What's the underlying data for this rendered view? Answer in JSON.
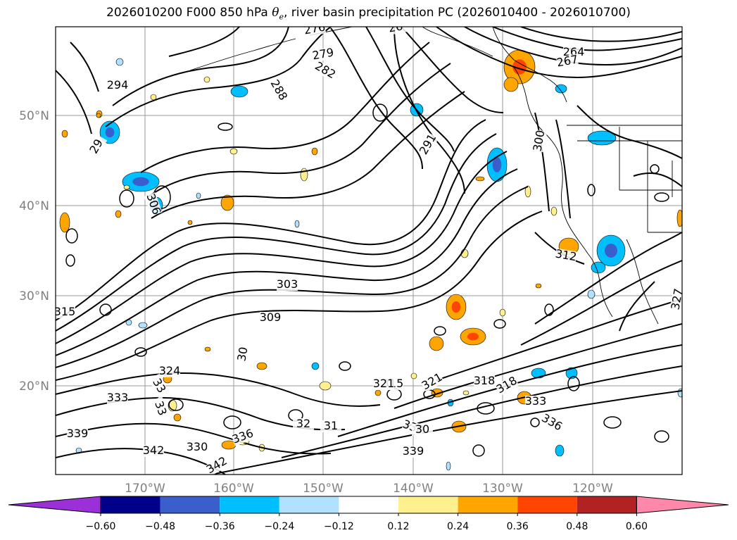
{
  "title": {
    "prefix": "2026010200 F000 850 hPa ",
    "theta": "θ",
    "theta_sub": "e",
    "suffix": ", river basin precipitation PC (2026010400 - 2026010700)"
  },
  "map": {
    "lat_labels": [
      "50°N",
      "40°N",
      "30°N",
      "20°N"
    ],
    "lon_labels": [
      "170°W",
      "160°W",
      "150°W",
      "140°W",
      "130°W",
      "120°W"
    ],
    "contour_labels": [
      "294",
      "29",
      "306",
      "303",
      "309",
      "315",
      "324",
      "321",
      "315",
      "321",
      "318",
      "318",
      "333",
      "333",
      "339",
      "336",
      "330",
      "339",
      "342",
      "330",
      "336",
      "342",
      "279",
      "282",
      "288",
      "291",
      "300",
      "312",
      "327",
      "276",
      "264",
      "267",
      "26",
      "30",
      "33",
      "33",
      "32",
      "31",
      "30"
    ]
  },
  "colorbar": {
    "colors": [
      "#9b30d9",
      "#00008b",
      "#3a5fcd",
      "#00bfff",
      "#b0e2ff",
      "#ffffff",
      "#fff08f",
      "#ffa500",
      "#ff4500",
      "#b22222",
      "#ff88aa"
    ],
    "tick_labels": [
      "−0.60",
      "−0.48",
      "−0.36",
      "−0.24",
      "−0.12",
      "0.12",
      "0.24",
      "0.36",
      "0.48",
      "0.60"
    ]
  }
}
